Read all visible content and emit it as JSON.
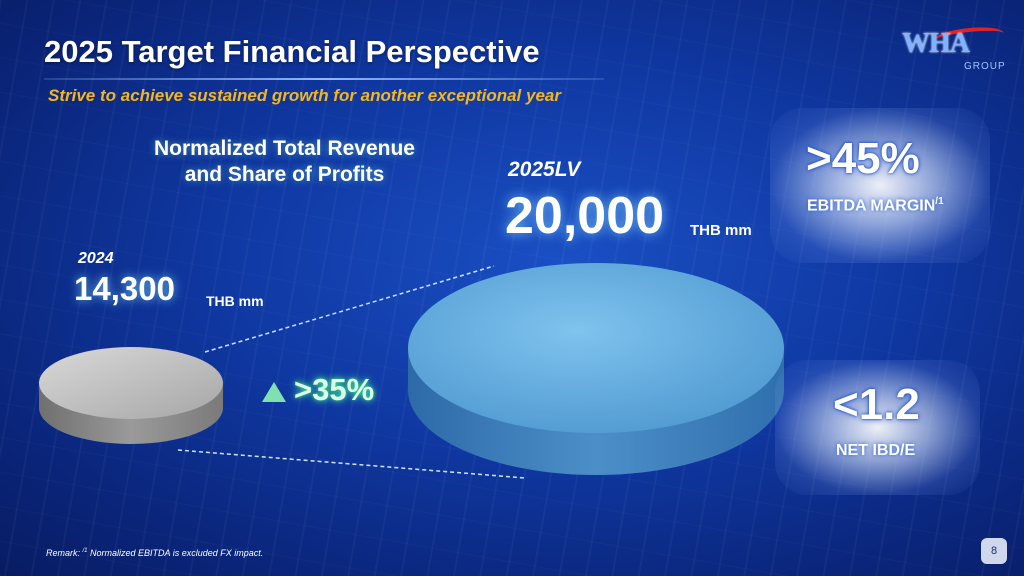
{
  "slide": {
    "title": "2025 Target Financial Perspective",
    "subtitle": "Strive to achieve sustained growth for another exceptional year",
    "page_number": "8"
  },
  "logo": {
    "text": "WHA",
    "group": "GROUP"
  },
  "revenue_section": {
    "heading_line1": "Normalized Total Revenue",
    "heading_line2": "and Share of Profits",
    "year_2024": {
      "label": "2024",
      "value": "14,300",
      "unit": "THB mm"
    },
    "year_2025": {
      "label": "2025LV",
      "value": "20,000",
      "unit": "THB mm"
    },
    "growth": {
      "icon": "up-triangle-icon",
      "value": ">35%"
    }
  },
  "kpis": {
    "ebitda": {
      "value": ">45%",
      "label": "EBITDA MARGIN",
      "superscript": "/1"
    },
    "net_ibd": {
      "value": "<1.2",
      "label": "NET IBD/E"
    }
  },
  "remark": {
    "prefix": "Remark: ",
    "superscript": "/1",
    "text": " Normalized EBITDA is excluded FX impact."
  },
  "colors": {
    "background": "#0f37a0",
    "subtitle": "#f2b61f",
    "growth": "#7fe1b1",
    "disk_2024": "#b9b9b9",
    "disk_2025": "#5fa8dc",
    "logo_accent": "#e42222"
  }
}
